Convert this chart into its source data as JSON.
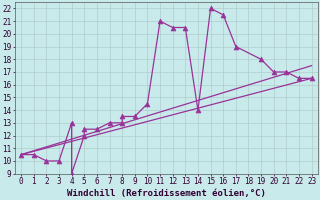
{
  "background_color": "#c8eaea",
  "grid_color": "#b0cccc",
  "line_color": "#993399",
  "xlim": [
    -0.5,
    23.5
  ],
  "ylim": [
    9,
    22.5
  ],
  "xticks": [
    0,
    1,
    2,
    3,
    4,
    5,
    6,
    7,
    8,
    9,
    10,
    11,
    12,
    13,
    14,
    15,
    16,
    17,
    18,
    19,
    20,
    21,
    22,
    23
  ],
  "yticks": [
    9,
    10,
    11,
    12,
    13,
    14,
    15,
    16,
    17,
    18,
    19,
    20,
    21,
    22
  ],
  "xlabel": "Windchill (Refroidissement éolien,°C)",
  "series_x": [
    0,
    1,
    2,
    3,
    4,
    4,
    5,
    5,
    6,
    7,
    8,
    8,
    9,
    10,
    11,
    12,
    13,
    14,
    15,
    16,
    17,
    19,
    20,
    21,
    22,
    23
  ],
  "series_y": [
    10.5,
    10.5,
    10.0,
    10.0,
    13.0,
    9.0,
    12.0,
    12.5,
    12.5,
    13.0,
    13.0,
    13.5,
    13.5,
    14.5,
    21.0,
    20.5,
    20.5,
    14.0,
    22.0,
    21.5,
    19.0,
    18.0,
    17.0,
    17.0,
    16.5,
    16.5
  ],
  "line1_x": [
    0,
    23
  ],
  "line1_y": [
    10.5,
    16.5
  ],
  "line2_x": [
    0,
    23
  ],
  "line2_y": [
    10.5,
    17.5
  ],
  "font_size": 6.5,
  "tick_font_size": 5.5,
  "marker_size": 3.5,
  "lw": 0.9
}
